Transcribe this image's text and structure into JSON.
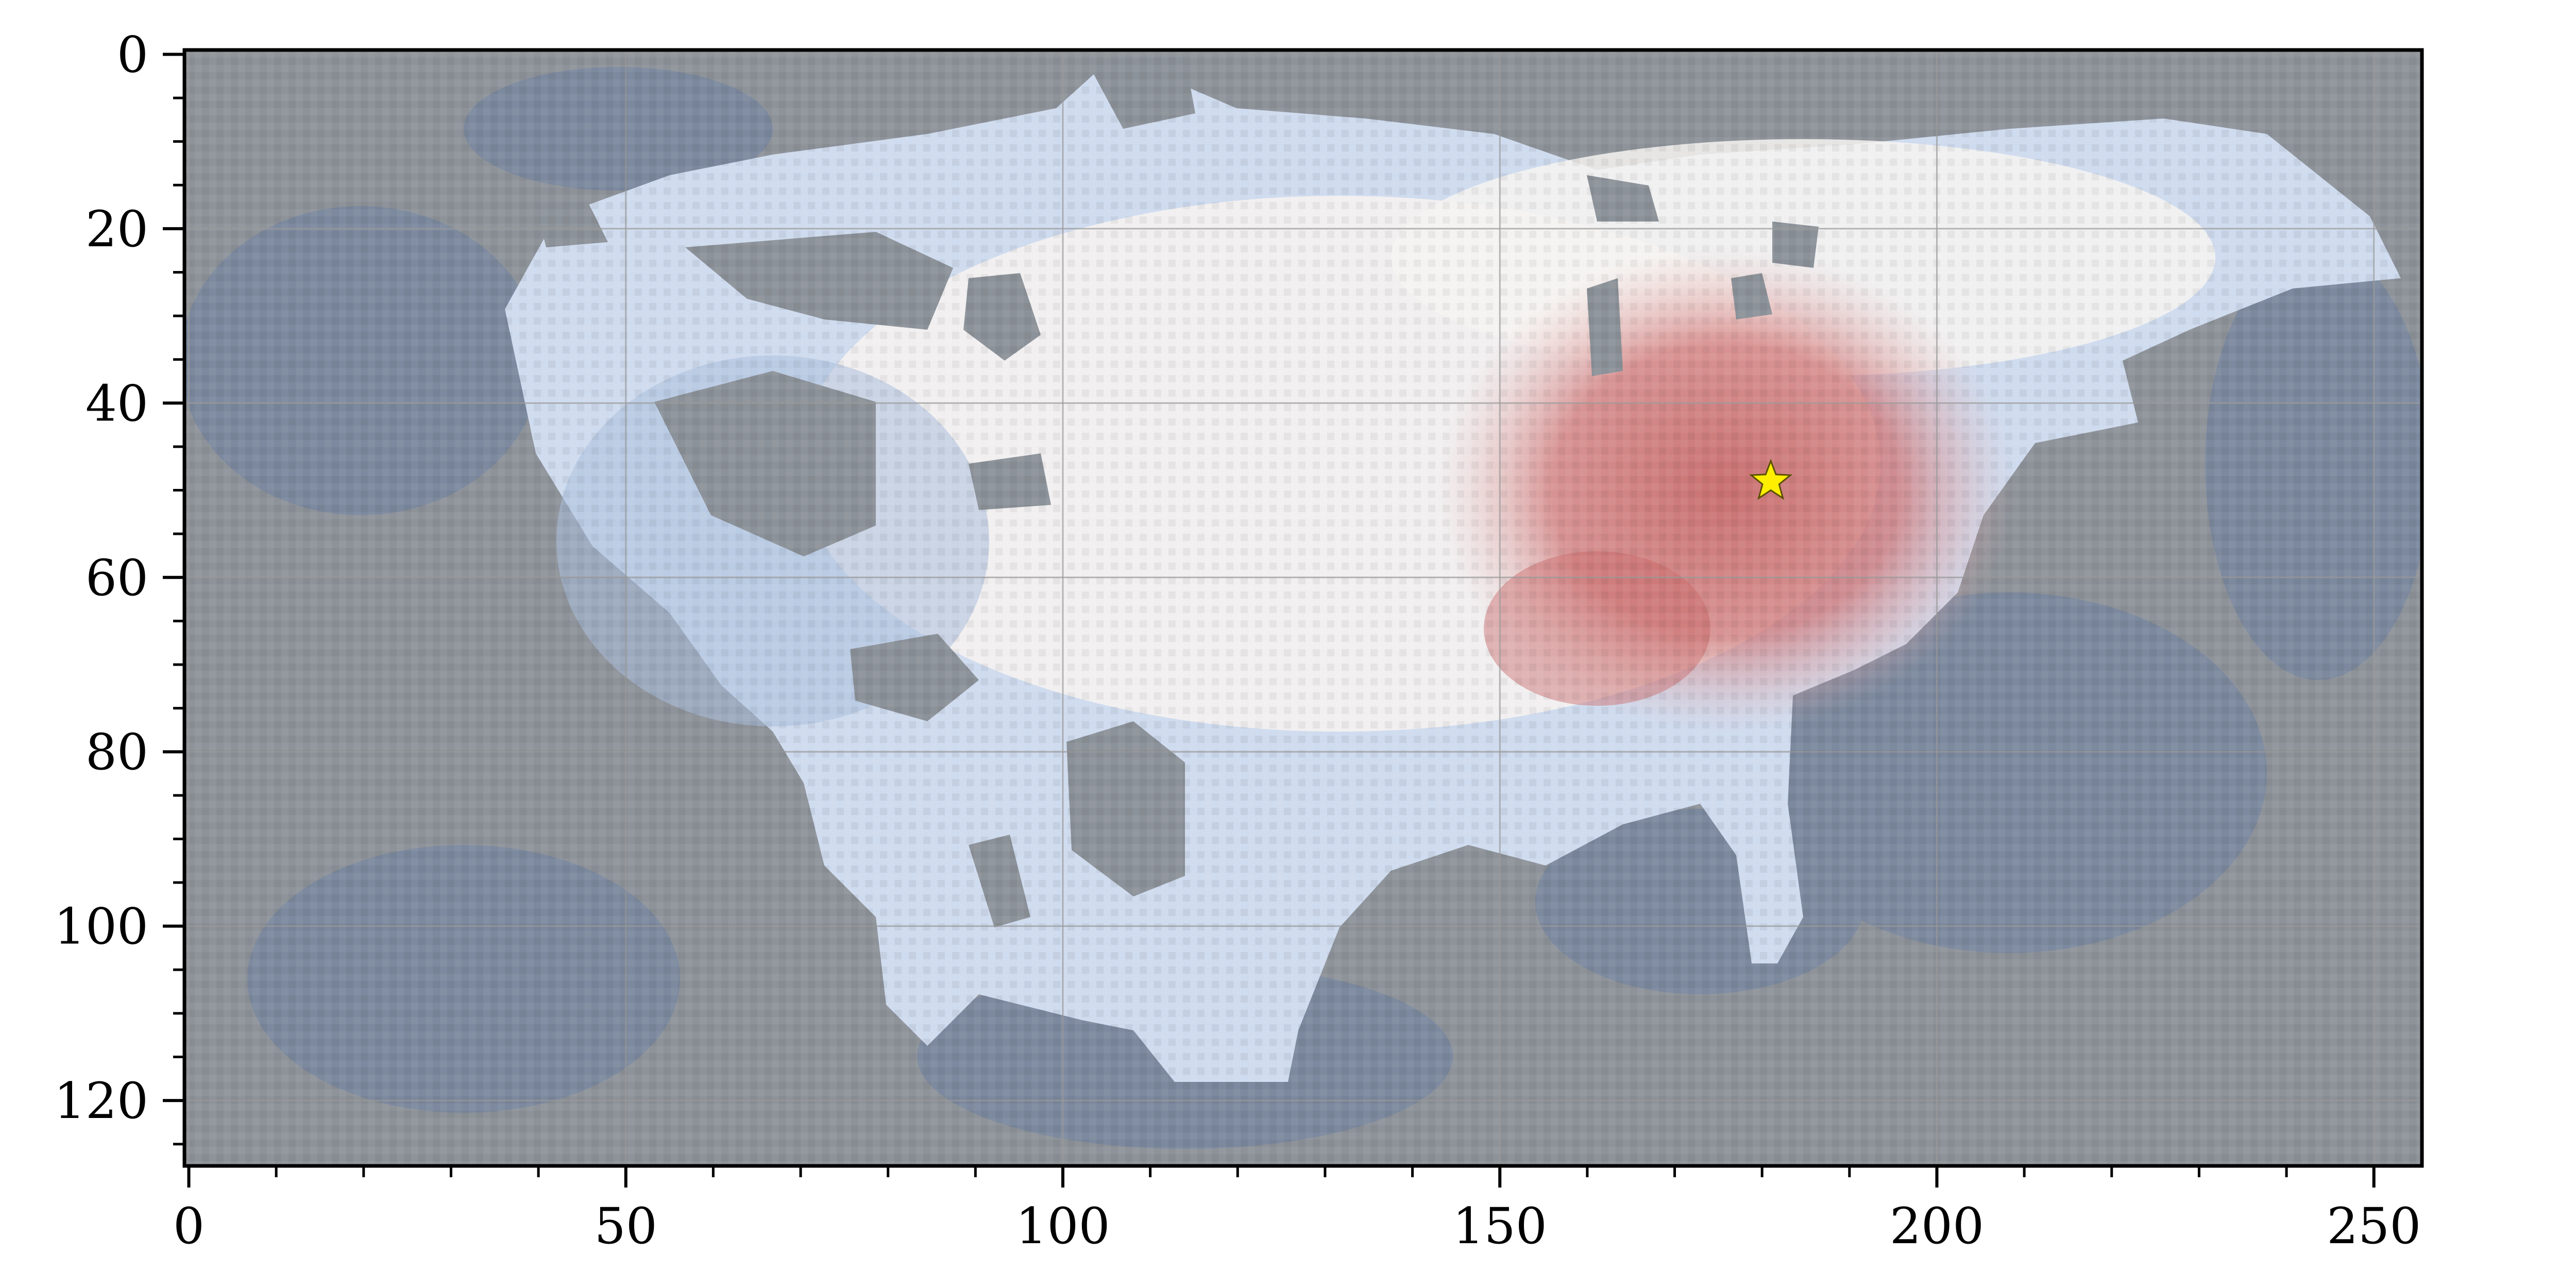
{
  "chart_data": {
    "type": "heatmap",
    "title": "",
    "xlabel": "",
    "ylabel": "",
    "xlim": [
      -0.5,
      255.5
    ],
    "ylim": [
      127.5,
      -0.5
    ],
    "x_ticks": [
      0,
      50,
      100,
      150,
      200,
      250
    ],
    "y_ticks": [
      0,
      20,
      40,
      60,
      80,
      100,
      120
    ],
    "x_tick_labels": [
      "0",
      "50",
      "100",
      "150",
      "200",
      "250"
    ],
    "y_tick_labels": [
      "0",
      "20",
      "40",
      "60",
      "80",
      "100",
      "120"
    ],
    "x_minor_step": 10,
    "y_minor_step": 5,
    "grid": true,
    "colormap": "diverging blue-white-red over land; semi-transparent gray mask over ocean",
    "colors": {
      "ocean": "#8e939a",
      "ocean_blue": "#5d79a6",
      "land_blue": "#b4c6e2",
      "land_white": "#f6f3f1",
      "land_red": "#c96a6a",
      "grid": "#9a9a9a",
      "marker_fill": "#ffee00",
      "marker_edge": "#5a5000"
    },
    "marker": {
      "shape": "star",
      "x": 181,
      "y": 49
    },
    "warm_anomaly_center": {
      "x": 172,
      "y": 50
    }
  }
}
